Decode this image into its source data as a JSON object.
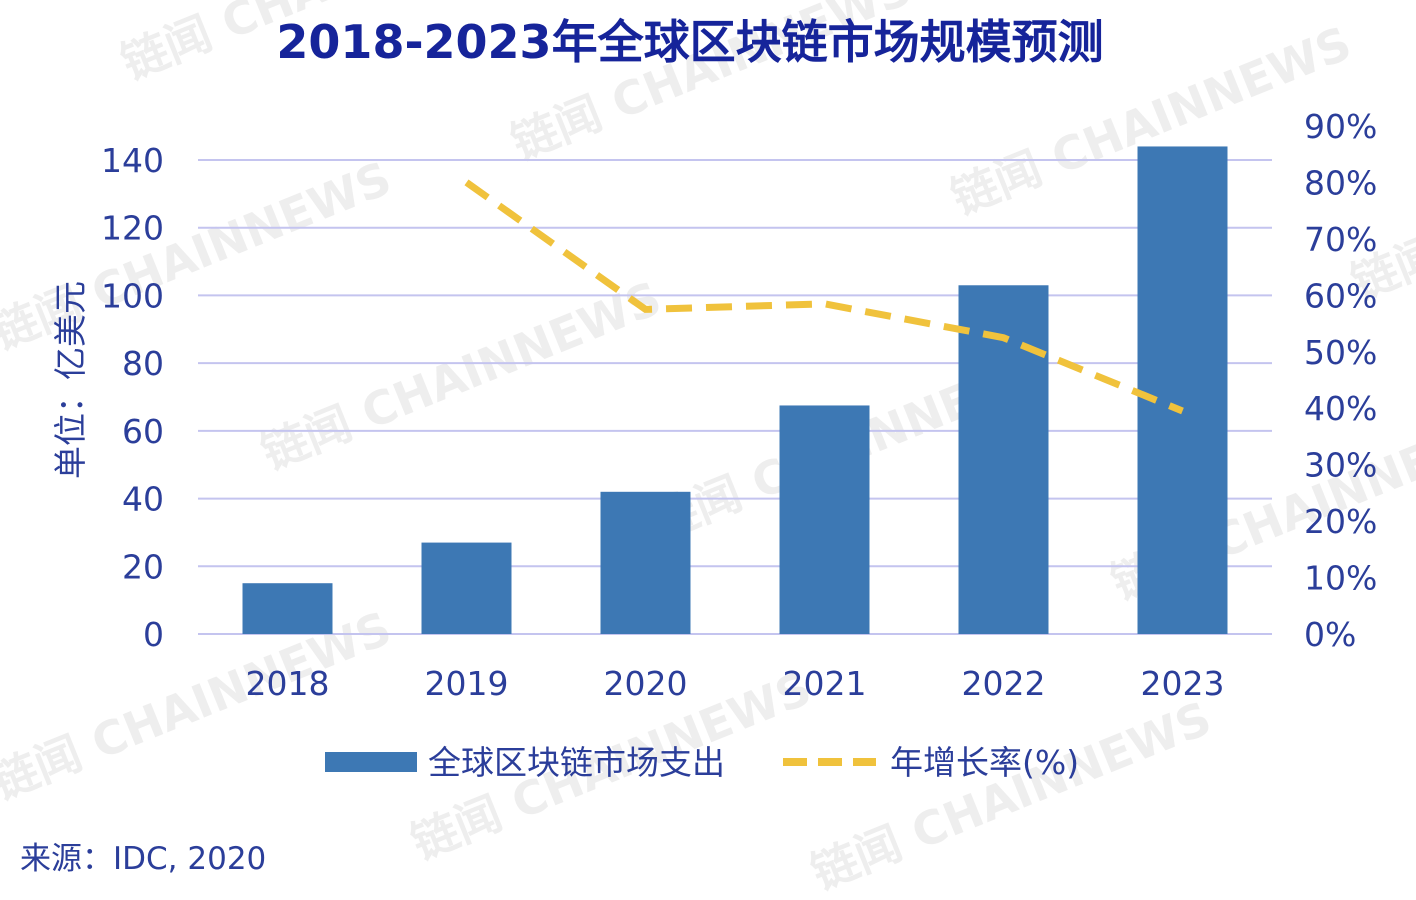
{
  "colors": {
    "bar": "#3d78b4",
    "line": "#f0c23c",
    "grid": "#c4c4ef",
    "text": "#2b3e9a",
    "title": "#16249a"
  },
  "watermark": "链闻 CHAINNEWS",
  "source": "来源：IDC, 2020",
  "chart_data": {
    "type": "bar",
    "title": "2018-2023年全球区块链市场规模预测",
    "ylabel": "单位：亿美元",
    "categories": [
      "2018",
      "2019",
      "2020",
      "2021",
      "2022",
      "2023"
    ],
    "ylim": [
      0,
      140
    ],
    "yticks": [
      "0",
      "20",
      "40",
      "60",
      "80",
      "100",
      "120",
      "140"
    ],
    "y2lim": [
      0,
      90
    ],
    "y2ticks": [
      "0%",
      "10%",
      "20%",
      "30%",
      "40%",
      "50%",
      "60%",
      "70%",
      "80%",
      "90%"
    ],
    "grid": true,
    "legend_position": "bottom",
    "series": [
      {
        "name": "全球区块链市场支出",
        "type": "bar",
        "axis": "left",
        "values": [
          15,
          27,
          42,
          67.5,
          103,
          144
        ]
      },
      {
        "name": "年增长率(%)",
        "type": "line",
        "style": "dashed",
        "axis": "right",
        "values": [
          null,
          80,
          57.5,
          58.5,
          52.5,
          39.5
        ]
      }
    ]
  }
}
